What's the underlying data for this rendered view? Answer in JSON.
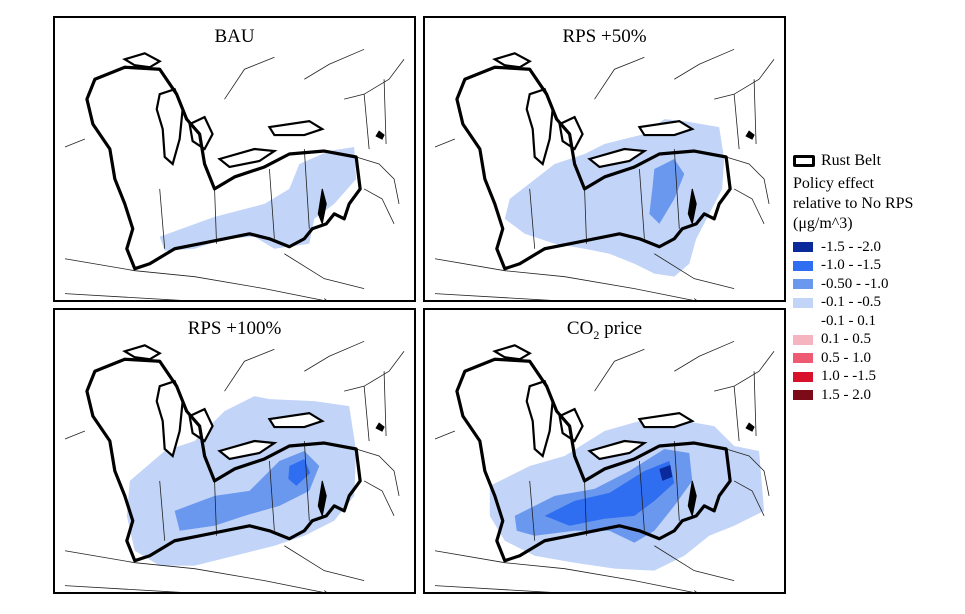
{
  "panels": [
    {
      "title": "BAU",
      "title_sub": "",
      "title_rest": "",
      "effect_level": 1
    },
    {
      "title": "RPS +50%",
      "title_sub": "",
      "title_rest": "",
      "effect_level": 2
    },
    {
      "title": "RPS +100%",
      "title_sub": "",
      "title_rest": "",
      "effect_level": 3
    },
    {
      "title": "CO",
      "title_sub": "2",
      "title_rest": " price",
      "effect_level": 4
    }
  ],
  "legend": {
    "outline_label": "Rust Belt",
    "heading": "Policy effect\nrelative to No RPS\n(μg/m^3)",
    "bins": [
      {
        "label": "-1.5 - -2.0",
        "color": "#0a2a9c"
      },
      {
        "label": "-1.0 - -1.5",
        "color": "#2f6ef0"
      },
      {
        "label": "-0.50 - -1.0",
        "color": "#6b98ef"
      },
      {
        "label": "-0.1 - -0.5",
        "color": "#c2d4f7"
      },
      {
        "label": "-0.1 - 0.1",
        "color": "#ffffff"
      },
      {
        "label": "0.1 - 0.5",
        "color": "#f6b3c0"
      },
      {
        "label": "0.5 - 1.0",
        "color": "#ef5a73"
      },
      {
        "label": "1.0 - -1.5",
        "color": "#d8122b"
      },
      {
        "label": "1.5 - 2.0",
        "color": "#7d0a17"
      }
    ]
  }
}
